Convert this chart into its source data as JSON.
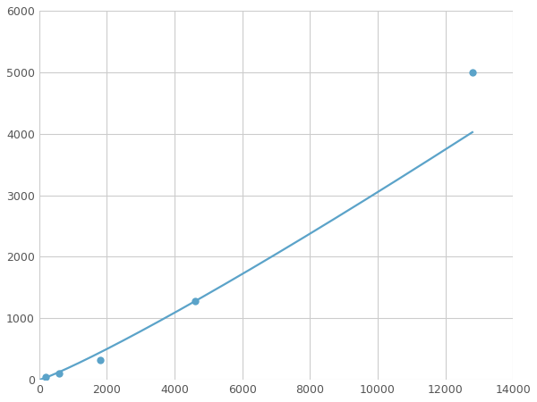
{
  "x_data": [
    200,
    600,
    1800,
    4600,
    12800
  ],
  "y_data": [
    50,
    110,
    320,
    1280,
    5000
  ],
  "line_color": "#5ba3c9",
  "marker_color": "#5ba3c9",
  "marker_size": 6,
  "line_width": 1.6,
  "xlim": [
    0,
    14000
  ],
  "ylim": [
    0,
    6000
  ],
  "xticks": [
    0,
    2000,
    4000,
    6000,
    8000,
    10000,
    12000,
    14000
  ],
  "yticks": [
    0,
    1000,
    2000,
    3000,
    4000,
    5000,
    6000
  ],
  "grid_color": "#cccccc",
  "background_color": "#ffffff",
  "fig_width": 6.0,
  "fig_height": 4.5,
  "dpi": 100
}
